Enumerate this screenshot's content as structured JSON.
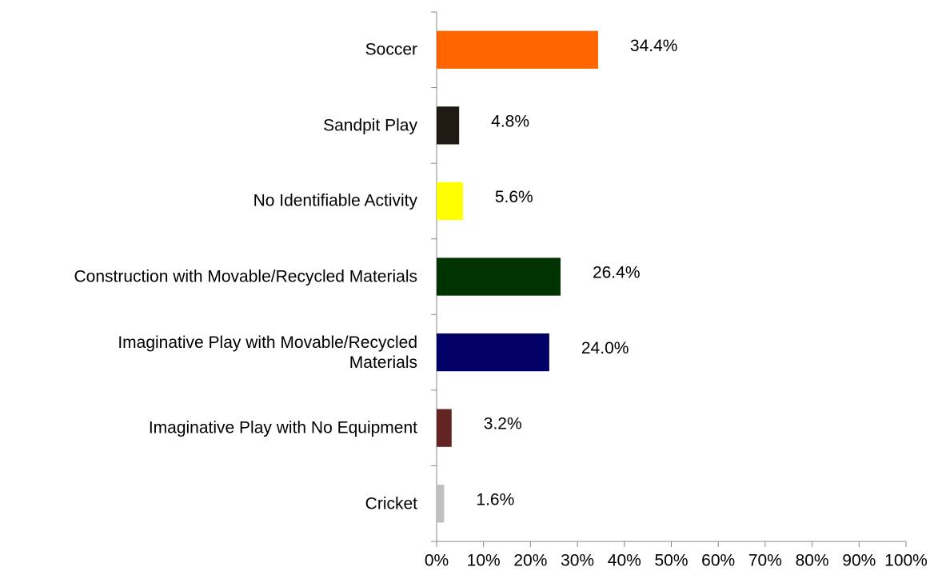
{
  "chart_data": {
    "type": "bar",
    "orientation": "horizontal",
    "categories": [
      "Soccer",
      "Sandpit Play",
      "No Identifiable Activity",
      "Construction with Movable/Recycled Materials",
      "Imaginative Play with Movable/Recycled Materials",
      "Imaginative Play with No Equipment",
      "Cricket"
    ],
    "values": [
      34.4,
      4.8,
      5.6,
      26.4,
      24.0,
      3.2,
      1.6
    ],
    "value_labels": [
      "34.4%",
      "4.8%",
      "5.6%",
      "26.4%",
      "24.0%",
      "3.2%",
      "1.6%"
    ],
    "colors": [
      "#ff6600",
      "#1f1a14",
      "#ffff00",
      "#003300",
      "#000066",
      "#632523",
      "#c0c0c0"
    ],
    "xlim": [
      0,
      100
    ],
    "xticks": [
      {
        "value": 0,
        "label": "0%"
      },
      {
        "value": 10,
        "label": "10%"
      },
      {
        "value": 20,
        "label": "20%"
      },
      {
        "value": 30,
        "label": "30%"
      },
      {
        "value": 40,
        "label": "40%"
      },
      {
        "value": 50,
        "label": "50%"
      },
      {
        "value": 60,
        "label": "60%"
      },
      {
        "value": 70,
        "label": "70%"
      },
      {
        "value": 80,
        "label": "80%"
      },
      {
        "value": 90,
        "label": "90%"
      },
      {
        "value": 100,
        "label": "100%"
      }
    ],
    "grid": false
  }
}
